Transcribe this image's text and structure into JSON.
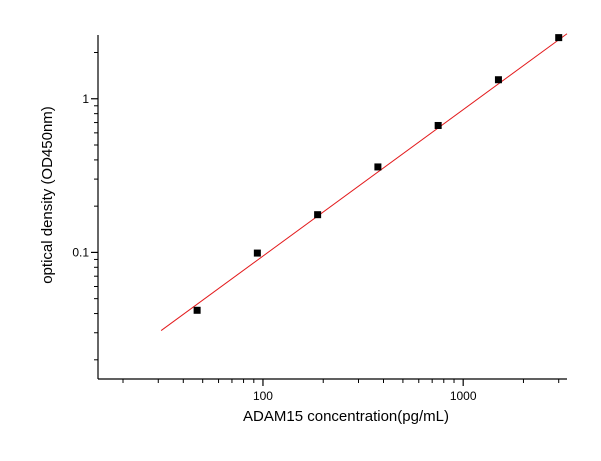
{
  "chart_data": {
    "type": "scatter",
    "xscale": "log",
    "yscale": "log",
    "xlim": [
      15,
      3300
    ],
    "ylim": [
      0.015,
      2.6
    ],
    "xlabel": "ADAM15  concentration(pg/mL)",
    "ylabel": "optical density (OD450nm)",
    "x_ticks": [
      {
        "value": 100,
        "label": "100"
      },
      {
        "value": 1000,
        "label": "1000"
      }
    ],
    "y_ticks": [
      {
        "value": 0.1,
        "label": "0.1"
      },
      {
        "value": 1,
        "label": "1"
      }
    ],
    "series": [
      {
        "marker": "square",
        "color": "#000000",
        "x": [
          46.9,
          93.75,
          187.5,
          375,
          750,
          1500,
          3000
        ],
        "y": [
          0.042,
          0.099,
          0.176,
          0.36,
          0.67,
          1.33,
          2.5
        ]
      }
    ],
    "fit_line": {
      "color": "#e31a1c",
      "x": [
        31,
        3300
      ],
      "y": [
        0.031,
        2.65
      ]
    },
    "grid": false,
    "legend": "none"
  }
}
